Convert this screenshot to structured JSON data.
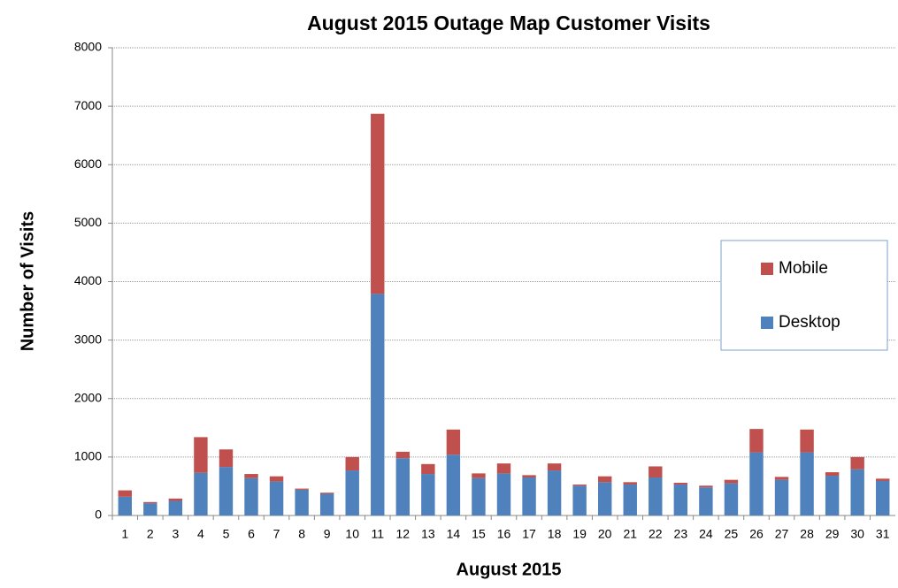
{
  "chart_data": {
    "type": "bar",
    "stacked": true,
    "title": "August 2015 Outage Map Customer Visits",
    "x_label": "August 2015",
    "y_label": "Number of Visits",
    "categories": [
      "1",
      "2",
      "3",
      "4",
      "5",
      "6",
      "7",
      "8",
      "9",
      "10",
      "11",
      "12",
      "13",
      "14",
      "15",
      "16",
      "17",
      "18",
      "19",
      "20",
      "21",
      "22",
      "23",
      "24",
      "25",
      "26",
      "27",
      "28",
      "29",
      "30",
      "31"
    ],
    "series": [
      {
        "name": "Desktop",
        "color": "#4f81bd",
        "values": [
          320,
          210,
          250,
          730,
          830,
          640,
          580,
          440,
          370,
          770,
          3790,
          980,
          710,
          1040,
          640,
          720,
          650,
          770,
          510,
          570,
          530,
          650,
          530,
          480,
          550,
          1080,
          610,
          1080,
          680,
          790,
          590
        ]
      },
      {
        "name": "Mobile",
        "color": "#c0504d",
        "values": [
          110,
          20,
          40,
          610,
          300,
          70,
          90,
          20,
          20,
          230,
          3080,
          110,
          170,
          430,
          80,
          170,
          40,
          120,
          20,
          100,
          40,
          190,
          30,
          30,
          60,
          400,
          50,
          390,
          60,
          210,
          40
        ]
      }
    ],
    "ylim": [
      0,
      8000
    ],
    "yticks": [
      0,
      1000,
      2000,
      3000,
      4000,
      5000,
      6000,
      7000,
      8000
    ],
    "grid": true,
    "legend": "right"
  }
}
